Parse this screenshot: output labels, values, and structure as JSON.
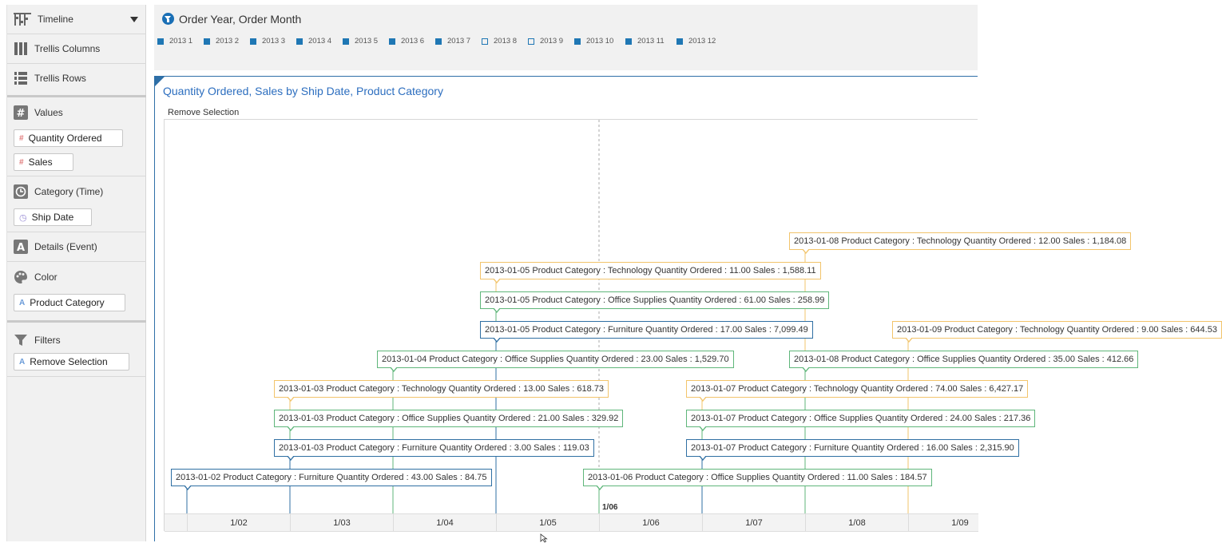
{
  "left_panel": {
    "visualization": {
      "label": "Timeline",
      "icon": "timeline-icon"
    },
    "trellis_columns": {
      "label": "Trellis Columns",
      "icon": "trellis-columns-icon"
    },
    "trellis_rows": {
      "label": "Trellis Rows",
      "icon": "trellis-rows-icon"
    },
    "values": {
      "label": "Values",
      "icon": "hash-icon",
      "items": [
        "Quantity Ordered",
        "Sales"
      ]
    },
    "category": {
      "label": "Category (Time)",
      "icon": "clock-icon",
      "items": [
        "Ship Date"
      ]
    },
    "details": {
      "label": "Details (Event)",
      "icon": "text-a-icon"
    },
    "color": {
      "label": "Color",
      "icon": "palette-icon",
      "items": [
        "Product Category"
      ]
    },
    "filters": {
      "label": "Filters",
      "icon": "funnel-icon",
      "items": [
        "Remove Selection"
      ]
    }
  },
  "filter_bar": {
    "title": "Order Year, Order Month",
    "months": [
      {
        "label": "2013 1",
        "checked": true
      },
      {
        "label": "2013 2",
        "checked": true
      },
      {
        "label": "2013 3",
        "checked": true
      },
      {
        "label": "2013 4",
        "checked": true
      },
      {
        "label": "2013 5",
        "checked": true
      },
      {
        "label": "2013 6",
        "checked": true
      },
      {
        "label": "2013 7",
        "checked": true
      },
      {
        "label": "2013 8",
        "checked": false
      },
      {
        "label": "2013 9",
        "checked": false
      },
      {
        "label": "2013 10",
        "checked": true
      },
      {
        "label": "2013 11",
        "checked": true
      },
      {
        "label": "2013 12",
        "checked": true
      }
    ]
  },
  "chart": {
    "title": "Quantity Ordered, Sales by Ship Date, Product Category",
    "remove_selection": "Remove Selection",
    "marker_label": "1/06",
    "colors": {
      "Technology": "#f2c46b",
      "Office Supplies": "#5fb67a",
      "Furniture": "#2f6fa3"
    }
  },
  "chart_data": {
    "type": "timeline",
    "x_ticks": [
      "1/02",
      "1/03",
      "1/04",
      "1/05",
      "1/06",
      "1/07",
      "1/08",
      "1/09"
    ],
    "events": [
      {
        "date": "2013-01-08",
        "day": 8,
        "category": "Technology",
        "level": 8,
        "text": "2013-01-08 Product Category : Technology Quantity Ordered : 12.00 Sales : 1,184.08"
      },
      {
        "date": "2013-01-05",
        "day": 5,
        "category": "Technology",
        "level": 7,
        "text": "2013-01-05 Product Category : Technology Quantity Ordered : 11.00 Sales : 1,588.11"
      },
      {
        "date": "2013-01-05",
        "day": 5,
        "category": "Office Supplies",
        "level": 6,
        "text": "2013-01-05 Product Category : Office Supplies Quantity Ordered : 61.00 Sales : 258.99"
      },
      {
        "date": "2013-01-05",
        "day": 5,
        "category": "Furniture",
        "level": 5,
        "text": "2013-01-05 Product Category : Furniture Quantity Ordered : 17.00 Sales : 7,099.49"
      },
      {
        "date": "2013-01-09",
        "day": 9,
        "category": "Technology",
        "level": 5,
        "text": "2013-01-09 Product Category : Technology Quantity Ordered : 9.00 Sales : 644.53"
      },
      {
        "date": "2013-01-04",
        "day": 4,
        "category": "Office Supplies",
        "level": 4,
        "text": "2013-01-04 Product Category : Office Supplies Quantity Ordered : 23.00 Sales : 1,529.70"
      },
      {
        "date": "2013-01-08",
        "day": 8,
        "category": "Office Supplies",
        "level": 4,
        "text": "2013-01-08 Product Category : Office Supplies Quantity Ordered : 35.00 Sales : 412.66"
      },
      {
        "date": "2013-01-03",
        "day": 3,
        "category": "Technology",
        "level": 3,
        "text": "2013-01-03 Product Category : Technology Quantity Ordered : 13.00 Sales : 618.73"
      },
      {
        "date": "2013-01-07",
        "day": 7,
        "category": "Technology",
        "level": 3,
        "text": "2013-01-07 Product Category : Technology Quantity Ordered : 74.00 Sales : 6,427.17"
      },
      {
        "date": "2013-01-03",
        "day": 3,
        "category": "Office Supplies",
        "level": 2,
        "text": "2013-01-03 Product Category : Office Supplies Quantity Ordered : 21.00 Sales : 329.92"
      },
      {
        "date": "2013-01-07",
        "day": 7,
        "category": "Office Supplies",
        "level": 2,
        "text": "2013-01-07 Product Category : Office Supplies Quantity Ordered : 24.00 Sales : 217.36"
      },
      {
        "date": "2013-01-03",
        "day": 3,
        "category": "Furniture",
        "level": 1,
        "text": "2013-01-03 Product Category : Furniture Quantity Ordered : 3.00 Sales : 119.03"
      },
      {
        "date": "2013-01-07",
        "day": 7,
        "category": "Furniture",
        "level": 1,
        "text": "2013-01-07 Product Category : Furniture Quantity Ordered : 16.00 Sales : 2,315.90"
      },
      {
        "date": "2013-01-02",
        "day": 2,
        "category": "Furniture",
        "level": 0,
        "text": "2013-01-02 Product Category : Furniture Quantity Ordered : 43.00 Sales : 84.75"
      },
      {
        "date": "2013-01-06",
        "day": 6,
        "category": "Office Supplies",
        "level": 0,
        "text": "2013-01-06 Product Category : Office Supplies Quantity Ordered : 11.00 Sales : 184.57"
      }
    ]
  }
}
